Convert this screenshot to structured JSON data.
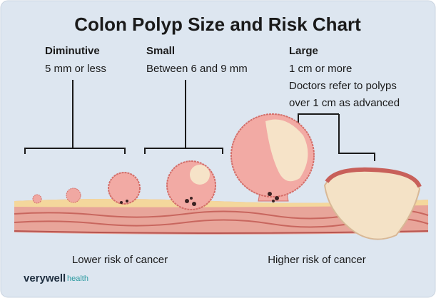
{
  "header": {
    "title": "Colon Polyp Size and Risk Chart"
  },
  "categories": [
    {
      "name": "Diminutive",
      "description": [
        "5 mm or less"
      ]
    },
    {
      "name": "Small",
      "description": [
        "Between 6 and 9 mm"
      ]
    },
    {
      "name": "Large",
      "description": [
        "1 cm or more",
        "Doctors refer to polyps",
        "over 1 cm as advanced"
      ]
    }
  ],
  "risk_labels": [
    "Lower risk of cancer",
    "Higher risk of cancer"
  ],
  "brand": {
    "name": "verywell",
    "sub": "health"
  }
}
